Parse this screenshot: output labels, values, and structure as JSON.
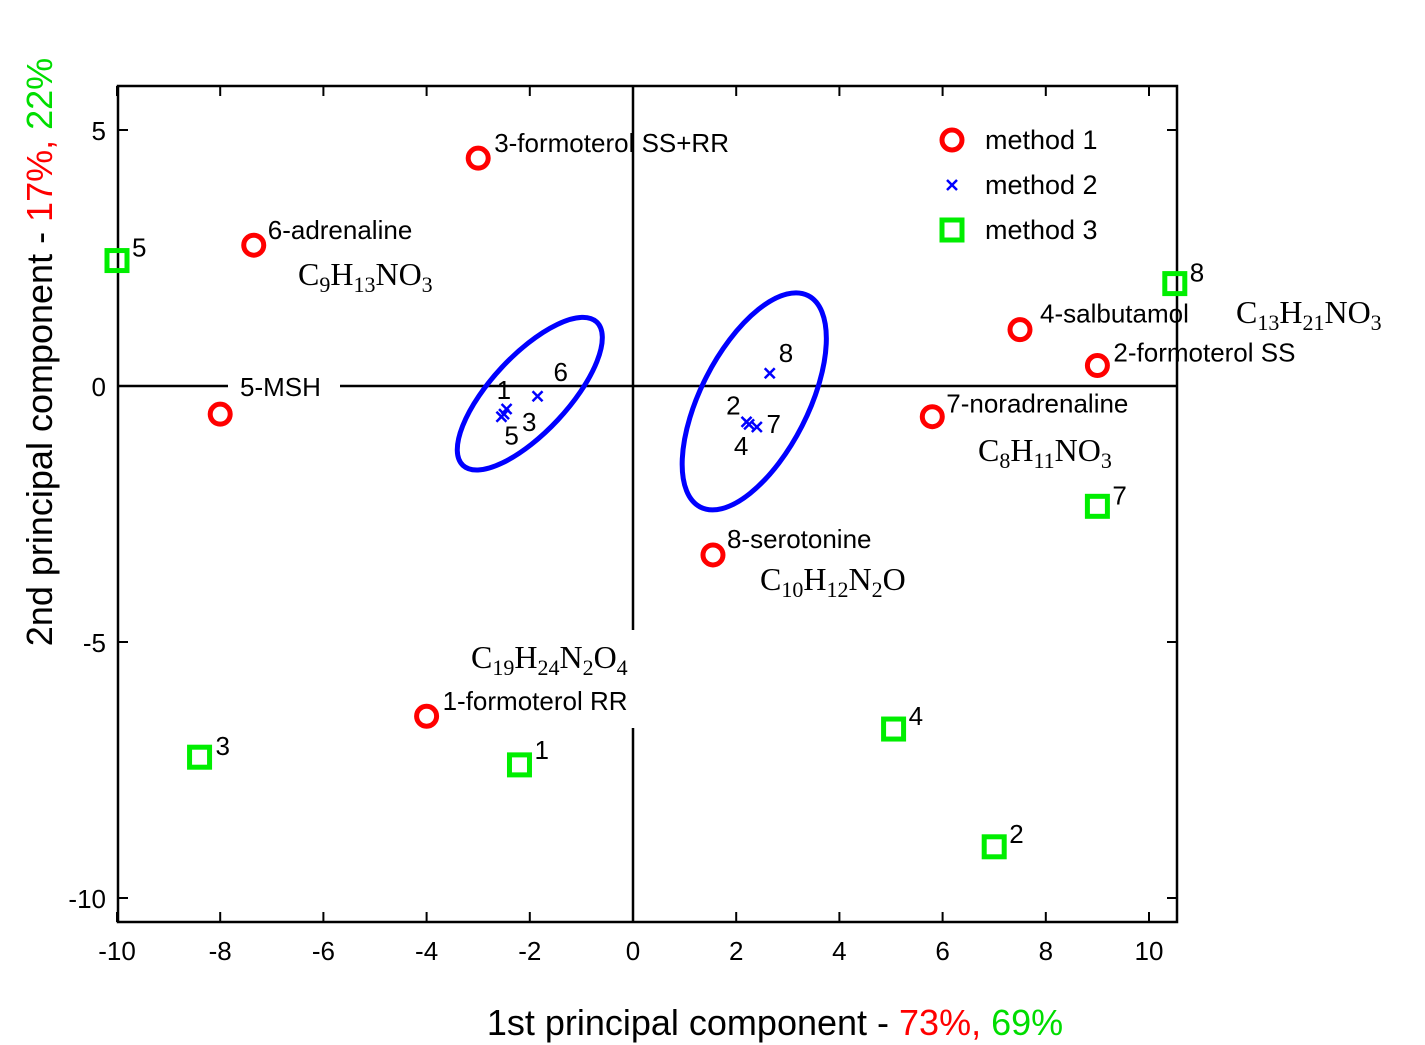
{
  "chart_data": {
    "type": "scatter",
    "title": "",
    "xlabel": {
      "text": "1st principal component  - ",
      "pct1": "73%,",
      "pct2": "69%",
      "pct1_color": "#ff0000",
      "pct2_color": "#00dd00"
    },
    "ylabel": {
      "text": "2nd principal component  - ",
      "pct1": "17%,",
      "pct2": "22%",
      "pct1_color": "#ff0000",
      "pct2_color": "#00dd00"
    },
    "xlim": [
      -10,
      10.5
    ],
    "ylim": [
      -10.4,
      5.8
    ],
    "xticks": [
      -10,
      -8,
      -6,
      -4,
      -2,
      0,
      2,
      4,
      6,
      8,
      10
    ],
    "yticks": [
      5,
      0,
      -5,
      -10
    ],
    "grid": false,
    "zero_lines": true,
    "legend_position": "top-right",
    "series": [
      {
        "name": "method 1",
        "marker": "circle",
        "color": "#ff0000",
        "points": [
          {
            "x": -4.0,
            "y": -6.45,
            "label": "1-formoterol RR"
          },
          {
            "x": 9.0,
            "y": 0.4,
            "label": "2-formoterol SS"
          },
          {
            "x": -3.0,
            "y": 4.45,
            "label": "3-formoterol SS+RR"
          },
          {
            "x": 7.5,
            "y": 1.1,
            "label": "4-salbutamol"
          },
          {
            "x": -8.0,
            "y": -0.55,
            "label": "5-MSH"
          },
          {
            "x": -7.35,
            "y": 2.75,
            "label": "6-adrenaline"
          },
          {
            "x": 5.8,
            "y": -0.6,
            "label": "7-noradrenaline"
          },
          {
            "x": 1.55,
            "y": -3.3,
            "label": "8-serotonine"
          }
        ]
      },
      {
        "name": "method 2",
        "marker": "x",
        "color": "#0000ff",
        "points": [
          {
            "x": -2.45,
            "y": -0.45,
            "label": "1"
          },
          {
            "x": 2.25,
            "y": -0.75,
            "label": "2"
          },
          {
            "x": -2.5,
            "y": -0.55,
            "label": "3"
          },
          {
            "x": 2.4,
            "y": -0.8,
            "label": "4"
          },
          {
            "x": -2.55,
            "y": -0.6,
            "label": "5"
          },
          {
            "x": -1.85,
            "y": -0.2,
            "label": "6"
          },
          {
            "x": 2.2,
            "y": -0.7,
            "label": "7"
          },
          {
            "x": 2.65,
            "y": 0.25,
            "label": "8"
          }
        ]
      },
      {
        "name": "method 3",
        "marker": "square",
        "color": "#00ee00",
        "points": [
          {
            "x": -2.2,
            "y": -7.4,
            "label": "1"
          },
          {
            "x": 7.0,
            "y": -9.0,
            "label": "2"
          },
          {
            "x": -8.4,
            "y": -7.25,
            "label": "3"
          },
          {
            "x": 5.05,
            "y": -6.7,
            "label": "4"
          },
          {
            "x": -10.0,
            "y": 2.45,
            "label": "5"
          },
          {
            "x": 9.0,
            "y": -2.35,
            "label": "7"
          },
          {
            "x": 10.5,
            "y": 2.0,
            "label": "8"
          }
        ]
      }
    ],
    "formulas": [
      {
        "parts": [
          [
            "C",
            0
          ],
          [
            "9",
            1
          ],
          [
            "H",
            0
          ],
          [
            "13",
            1
          ],
          [
            "NO",
            0
          ],
          [
            "3",
            1
          ]
        ]
      },
      {
        "parts": [
          [
            "C",
            0
          ],
          [
            "13",
            1
          ],
          [
            "H",
            0
          ],
          [
            "21",
            1
          ],
          [
            "NO",
            0
          ],
          [
            "3",
            1
          ]
        ]
      },
      {
        "parts": [
          [
            "C",
            0
          ],
          [
            "8",
            1
          ],
          [
            "H",
            0
          ],
          [
            "11",
            1
          ],
          [
            "NO",
            0
          ],
          [
            "3",
            1
          ]
        ]
      },
      {
        "parts": [
          [
            "C",
            0
          ],
          [
            "10",
            1
          ],
          [
            "H",
            0
          ],
          [
            "12",
            1
          ],
          [
            "N",
            0
          ],
          [
            "2",
            1
          ],
          [
            "O",
            0
          ]
        ]
      },
      {
        "parts": [
          [
            "C",
            0
          ],
          [
            "19",
            1
          ],
          [
            "H",
            0
          ],
          [
            "24",
            1
          ],
          [
            "N",
            0
          ],
          [
            "2",
            1
          ],
          [
            "O",
            0
          ],
          [
            "4",
            1
          ]
        ]
      }
    ],
    "ellipses": [
      {
        "cx": -2.0,
        "cy": -0.15,
        "rx": 1.9,
        "ry": 0.75,
        "rotation_deg": -47,
        "color": "#0000ff"
      },
      {
        "cx": 2.35,
        "cy": -0.3,
        "rx": 2.3,
        "ry": 1.05,
        "rotation_deg": -63,
        "color": "#0000ff"
      }
    ]
  }
}
